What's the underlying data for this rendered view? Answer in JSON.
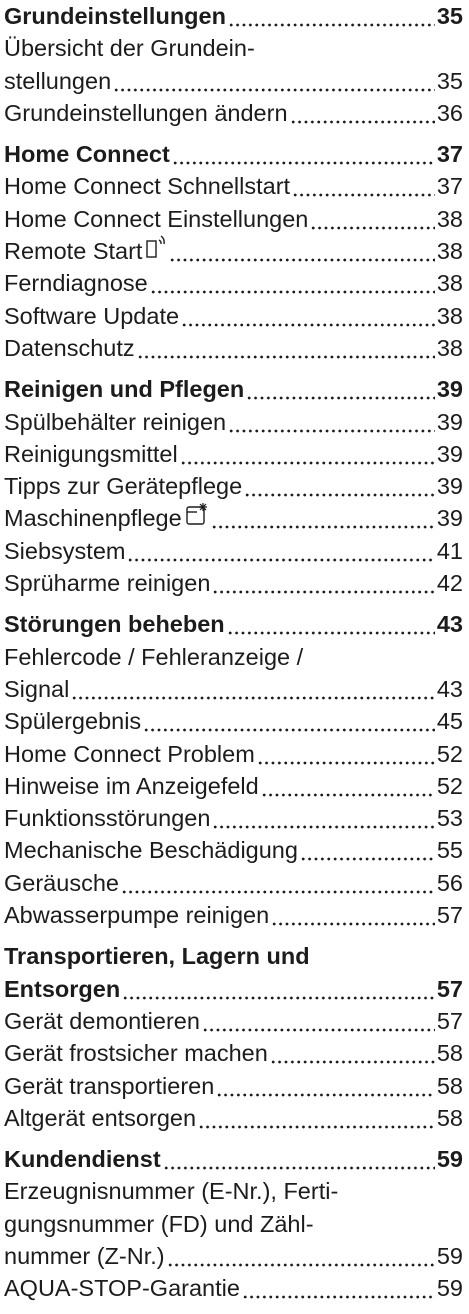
{
  "sections": [
    {
      "title": [
        "Grundeinstellungen"
      ],
      "page": 35,
      "entries": [
        {
          "text": [
            "Übersicht der Grundein-",
            "stellungen"
          ],
          "page": 35
        },
        {
          "text": [
            "Grundeinstellungen ändern"
          ],
          "page": 36
        }
      ]
    },
    {
      "title": [
        "Home Connect"
      ],
      "page": 37,
      "entries": [
        {
          "text": [
            "Home Connect Schnellstart"
          ],
          "page": 37
        },
        {
          "text": [
            "Home Connect Einstellungen"
          ],
          "page": 38
        },
        {
          "text": [
            "Remote Start"
          ],
          "page": 38,
          "icon": "remote"
        },
        {
          "text": [
            "Ferndiagnose"
          ],
          "page": 38
        },
        {
          "text": [
            "Software Update"
          ],
          "page": 38
        },
        {
          "text": [
            "Datenschutz"
          ],
          "page": 38
        }
      ]
    },
    {
      "title": [
        "Reinigen und Pflegen"
      ],
      "page": 39,
      "entries": [
        {
          "text": [
            "Spülbehälter reinigen"
          ],
          "page": 39
        },
        {
          "text": [
            "Reinigungsmittel"
          ],
          "page": 39
        },
        {
          "text": [
            "Tipps zur Gerätepflege"
          ],
          "page": 39
        },
        {
          "text": [
            "Maschinenpflege"
          ],
          "page": 39,
          "icon": "care"
        },
        {
          "text": [
            "Siebsystem"
          ],
          "page": 41
        },
        {
          "text": [
            "Sprüharme reinigen"
          ],
          "page": 42
        }
      ]
    },
    {
      "title": [
        "Störungen beheben"
      ],
      "page": 43,
      "entries": [
        {
          "text": [
            "Fehlercode / Fehleranzeige /",
            "Signal"
          ],
          "page": 43
        },
        {
          "text": [
            "Spülergebnis"
          ],
          "page": 45
        },
        {
          "text": [
            "Home Connect Problem"
          ],
          "page": 52
        },
        {
          "text": [
            "Hinweise im Anzeigefeld"
          ],
          "page": 52
        },
        {
          "text": [
            "Funktionsstörungen"
          ],
          "page": 53
        },
        {
          "text": [
            "Mechanische Beschädigung"
          ],
          "page": 55
        },
        {
          "text": [
            "Geräusche"
          ],
          "page": 56
        },
        {
          "text": [
            "Abwasserpumpe reinigen"
          ],
          "page": 57
        }
      ]
    },
    {
      "title": [
        "Transportieren, Lagern und",
        "Entsorgen"
      ],
      "page": 57,
      "entries": [
        {
          "text": [
            "Gerät demontieren"
          ],
          "page": 57
        },
        {
          "text": [
            "Gerät frostsicher machen"
          ],
          "page": 58
        },
        {
          "text": [
            "Gerät transportieren"
          ],
          "page": 58
        },
        {
          "text": [
            "Altgerät entsorgen"
          ],
          "page": 58
        }
      ]
    },
    {
      "title": [
        "Kundendienst"
      ],
      "page": 59,
      "entries": [
        {
          "text": [
            "Erzeugnisnummer (E-Nr.), Ferti-",
            "gungsnummer (FD) und Zähl-",
            "nummer (Z-Nr.)"
          ],
          "page": 59
        },
        {
          "text": [
            "AQUA-STOP-Garantie"
          ],
          "page": 59
        }
      ]
    }
  ]
}
